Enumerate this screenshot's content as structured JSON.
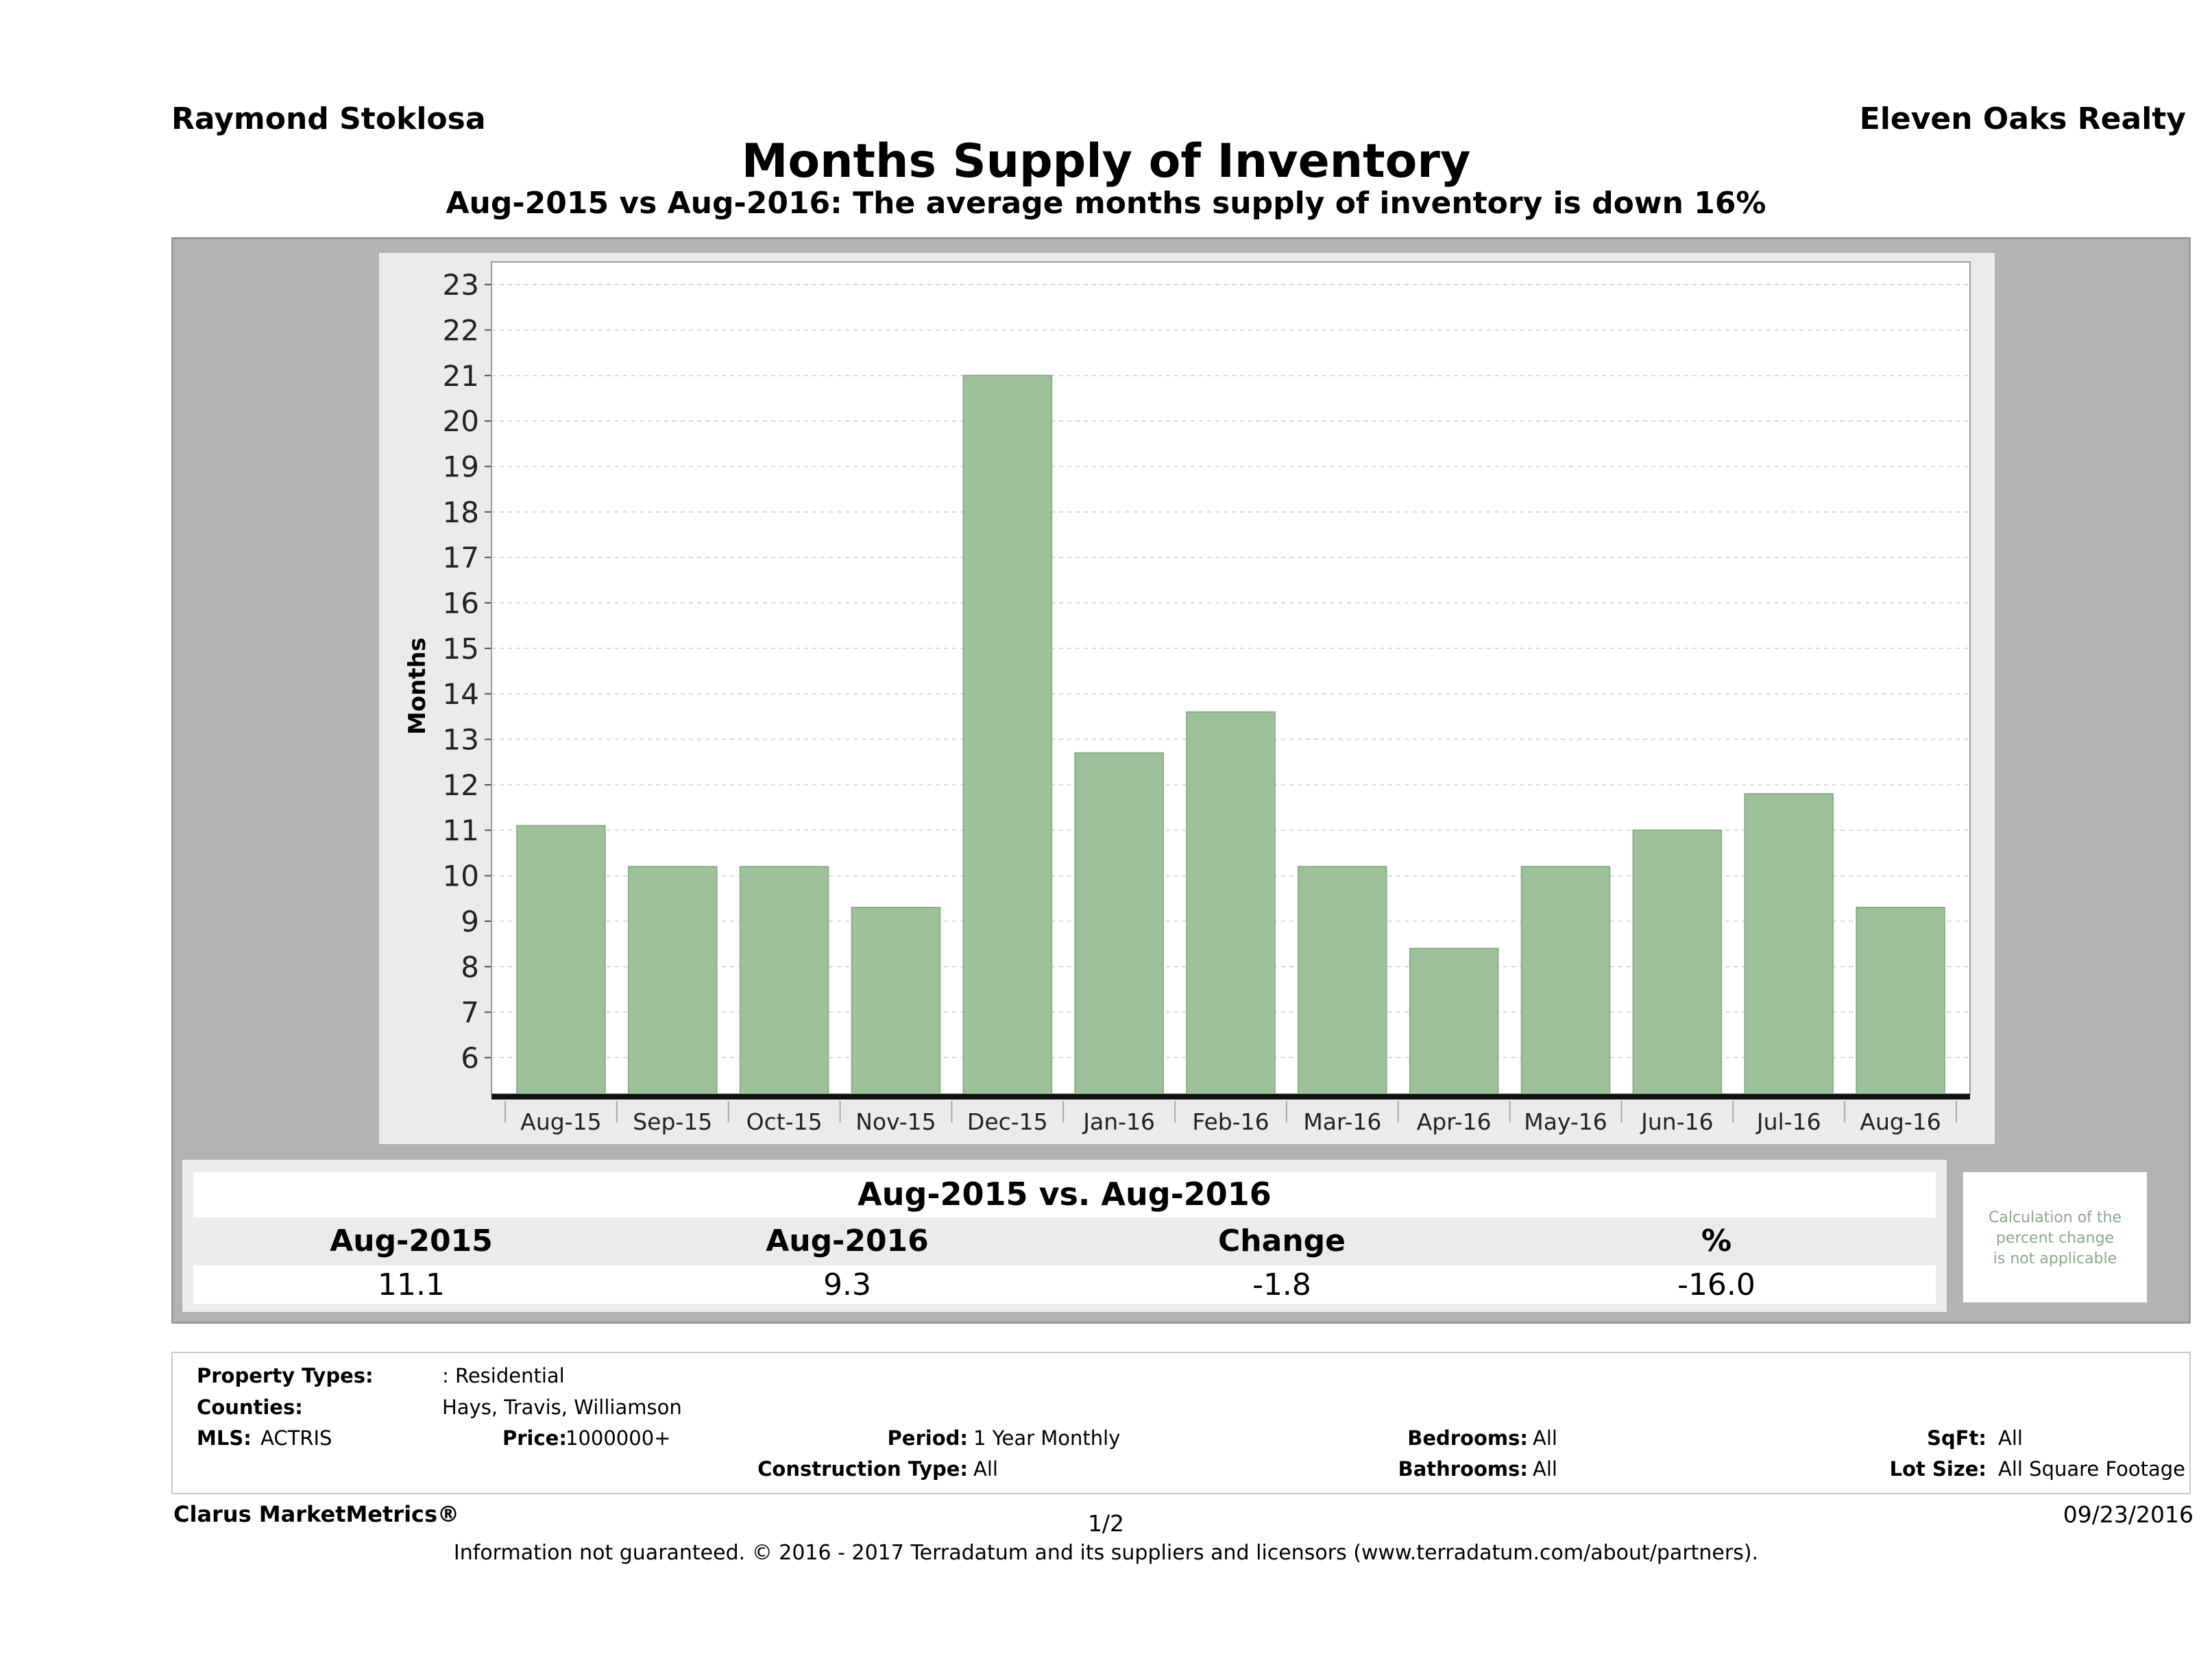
{
  "header": {
    "agent": "Raymond Stoklosa",
    "company": "Eleven Oaks Realty",
    "title": "Months Supply of Inventory",
    "subtitle": "Aug-2015 vs Aug-2016: The average months supply of inventory is down 16%"
  },
  "chart_data": {
    "type": "bar",
    "title": "",
    "xlabel": "",
    "ylabel": "Months",
    "categories": [
      "Aug-15",
      "Sep-15",
      "Oct-15",
      "Nov-15",
      "Dec-15",
      "Jan-16",
      "Feb-16",
      "Mar-16",
      "Apr-16",
      "May-16",
      "Jun-16",
      "Jul-16",
      "Aug-16"
    ],
    "values": [
      11.1,
      10.2,
      10.2,
      9.3,
      21.0,
      12.7,
      13.6,
      10.2,
      8.4,
      10.2,
      11.0,
      11.8,
      9.3
    ],
    "ylim": [
      5.2,
      23.5
    ],
    "yticks": [
      6,
      7,
      8,
      9,
      10,
      11,
      12,
      13,
      14,
      15,
      16,
      17,
      18,
      19,
      20,
      21,
      22,
      23
    ],
    "grid": true,
    "colors": {
      "bar": "#9dc29a",
      "bar_edge": "#8aae87",
      "plot_bg": "#ffffff",
      "panel_bg": "#ebebeb",
      "frame_bg": "#b3b3b3",
      "grid": "#d9d9d9"
    }
  },
  "summary": {
    "title": "Aug-2015 vs. Aug-2016",
    "headers": [
      "Aug-2015",
      "Aug-2016",
      "Change",
      "%"
    ],
    "values": [
      "11.1",
      "9.3",
      "-1.8",
      "-16.0"
    ],
    "note_lines": [
      "Calculation of the",
      "percent change",
      "is not applicable"
    ]
  },
  "details": {
    "property_types_label": "Property Types:",
    "property_types_value": ": Residential",
    "counties_label": "Counties:",
    "counties_value": "Hays, Travis, Williamson",
    "mls_label": "MLS:",
    "mls_value": "ACTRIS",
    "price_label": "Price:",
    "price_value": "1000000+",
    "period_label": "Period:",
    "period_value": "1 Year Monthly",
    "construction_label": "Construction Type:",
    "construction_value": "All",
    "bedrooms_label": "Bedrooms:",
    "bedrooms_value": "All",
    "bathrooms_label": "Bathrooms:",
    "bathrooms_value": "All",
    "sqft_label": "SqFt:",
    "sqft_value": "All",
    "lot_label": "Lot Size:",
    "lot_value": "All Square Footage"
  },
  "footer": {
    "brand": "Clarus MarketMetrics®",
    "page": "1/2",
    "date": "09/23/2016",
    "disclaimer": "Information not guaranteed. © 2016 - 2017 Terradatum and its suppliers and licensors (www.terradatum.com/about/partners)."
  }
}
